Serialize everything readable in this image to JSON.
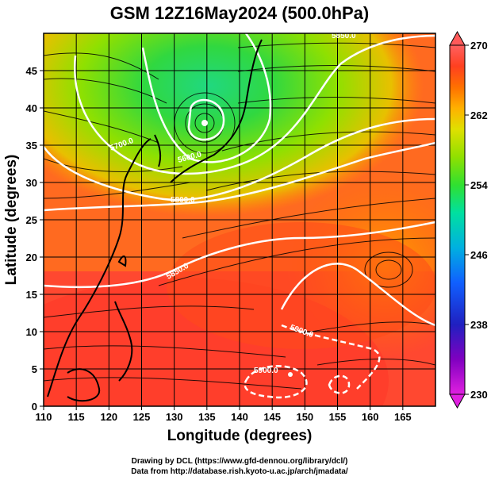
{
  "title": "GSM 12Z16May2024 (500.0hPa)",
  "x_axis": {
    "label": "Longitude (degrees)",
    "ticks": [
      "110",
      "115",
      "120",
      "125",
      "130",
      "135",
      "140",
      "145",
      "150",
      "155",
      "160",
      "165"
    ],
    "range": [
      110,
      170
    ]
  },
  "y_axis": {
    "label": "Latitude  (degrees)",
    "ticks": [
      "0",
      "5",
      "10",
      "15",
      "20",
      "25",
      "30",
      "35",
      "40",
      "45"
    ],
    "range": [
      0,
      50
    ]
  },
  "colorbar": {
    "ticks": [
      "230",
      "238",
      "246",
      "254",
      "262",
      "270"
    ],
    "range": [
      230,
      270
    ],
    "colors": [
      "#e020e0",
      "#8000c0",
      "#2020c0",
      "#1060ff",
      "#00b0e0",
      "#00e0a0",
      "#30e030",
      "#90e000",
      "#e0e000",
      "#ffb000",
      "#ff7000",
      "#ff4020",
      "#ff3030",
      "#ff6060"
    ]
  },
  "contours": {
    "labels": [
      "5700.0",
      "5600.0",
      "5800.0",
      "5850.0",
      "5900.0",
      "5850.0",
      "5900.0"
    ],
    "line_color": "#ffffff"
  },
  "credits": {
    "line1": "Drawing by DCL (https://www.gfd-dennou.org/library/dcl/)",
    "line2": "Data from http://database.rish.kyoto-u.ac.jp/arch/jmadata/"
  },
  "chart_data": {
    "type": "heatmap",
    "title": "GSM 12Z16May2024 (500.0hPa)",
    "xlabel": "Longitude (degrees)",
    "ylabel": "Latitude  (degrees)",
    "xlim": [
      110,
      170
    ],
    "ylim": [
      0,
      50
    ],
    "colorbar_range": [
      230,
      270
    ],
    "grid": true,
    "features": {
      "low_center": {
        "lon": 135,
        "lat": 40
      },
      "high_center": {
        "lon": 162,
        "lat": 20
      }
    }
  }
}
